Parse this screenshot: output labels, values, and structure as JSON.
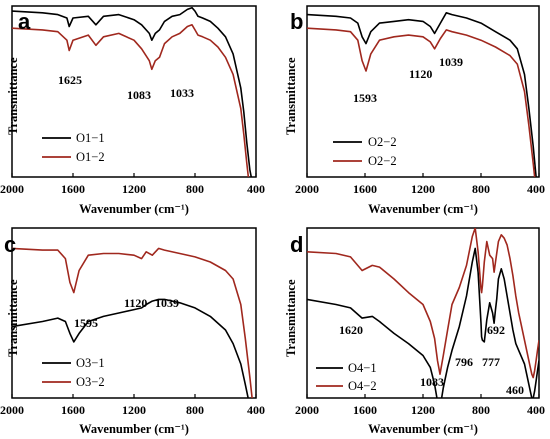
{
  "chart_data": [
    {
      "panel": "a",
      "type": "line",
      "xlabel": "Wavenumber (cm⁻¹)",
      "ylabel": "Transmittance",
      "xlim": [
        2000,
        400
      ],
      "xticks": [
        "2000",
        "1600",
        "1200",
        "800",
        "400"
      ],
      "legend_position": "bottom-left",
      "series": [
        {
          "name": "O1−1",
          "color": "#000000",
          "x": [
            2000,
            1800,
            1700,
            1640,
            1625,
            1600,
            1500,
            1450,
            1400,
            1300,
            1200,
            1150,
            1100,
            1083,
            1060,
            1033,
            1000,
            950,
            900,
            850,
            820,
            800,
            780,
            750,
            700,
            650,
            600,
            550,
            500,
            480,
            460,
            440,
            420,
            400
          ],
          "y": [
            97,
            96,
            95,
            93,
            88,
            93,
            94,
            89,
            94,
            95,
            92,
            89,
            84,
            80,
            84,
            86,
            91,
            94,
            95,
            98,
            99,
            97,
            94,
            93,
            91,
            87,
            82,
            72,
            52,
            38,
            20,
            4,
            -5,
            -10
          ]
        },
        {
          "name": "O1−2",
          "color": "#a0281e",
          "x": [
            2000,
            1800,
            1700,
            1640,
            1625,
            1600,
            1500,
            1450,
            1400,
            1300,
            1200,
            1150,
            1100,
            1083,
            1060,
            1033,
            1000,
            950,
            900,
            850,
            820,
            800,
            780,
            750,
            700,
            650,
            600,
            550,
            500,
            480,
            460,
            440,
            420,
            400
          ],
          "y": [
            87,
            86,
            85,
            80,
            74,
            80,
            83,
            77,
            82,
            84,
            80,
            75,
            68,
            63,
            68,
            70,
            78,
            82,
            84,
            88,
            89,
            86,
            83,
            82,
            80,
            76,
            70,
            60,
            40,
            25,
            8,
            -8,
            -20,
            -28
          ]
        }
      ],
      "annotations": [
        {
          "text": "1625"
        },
        {
          "text": "1083"
        },
        {
          "text": "1033"
        }
      ]
    },
    {
      "panel": "b",
      "type": "line",
      "xlabel": "Wavenumber (cm⁻¹)",
      "ylabel": "Transmittance",
      "xlim": [
        2000,
        400
      ],
      "xticks": [
        "2000",
        "1600",
        "1200",
        "800",
        "400"
      ],
      "legend_position": "bottom-left",
      "series": [
        {
          "name": "O2−2",
          "color": "#000000",
          "x": [
            2000,
            1800,
            1700,
            1650,
            1620,
            1593,
            1560,
            1500,
            1400,
            1300,
            1200,
            1150,
            1120,
            1080,
            1039,
            1000,
            900,
            800,
            700,
            600,
            550,
            500,
            470,
            440,
            420,
            400
          ],
          "y": [
            95,
            94,
            93,
            90,
            82,
            78,
            85,
            90,
            91,
            92,
            91,
            88,
            84,
            90,
            96,
            95,
            93,
            90,
            85,
            80,
            75,
            60,
            40,
            18,
            0,
            -15
          ]
        },
        {
          "name": "O2−2",
          "color": "#a0281e",
          "x": [
            2000,
            1800,
            1700,
            1650,
            1620,
            1593,
            1560,
            1500,
            1400,
            1300,
            1200,
            1150,
            1120,
            1080,
            1039,
            1000,
            900,
            800,
            700,
            600,
            550,
            500,
            470,
            440,
            420,
            400
          ],
          "y": [
            87,
            86,
            85,
            80,
            68,
            62,
            72,
            80,
            82,
            83,
            82,
            79,
            75,
            81,
            86,
            85,
            83,
            80,
            76,
            71,
            66,
            50,
            30,
            8,
            -8,
            -22
          ]
        }
      ],
      "annotations": [
        {
          "text": "1593"
        },
        {
          "text": "1120"
        },
        {
          "text": "1039"
        }
      ]
    },
    {
      "panel": "c",
      "type": "line",
      "xlabel": "Wavenumber (cm⁻¹)",
      "ylabel": "Transmittance",
      "xlim": [
        2000,
        400
      ],
      "xticks": [
        "2000",
        "1600",
        "1200",
        "800",
        "400"
      ],
      "legend_position": "bottom-left",
      "series": [
        {
          "name": "O3−1",
          "color": "#000000",
          "x": [
            2000,
            1800,
            1700,
            1650,
            1620,
            1595,
            1560,
            1500,
            1400,
            1300,
            1200,
            1150,
            1120,
            1080,
            1039,
            1000,
            900,
            800,
            700,
            600,
            550,
            500,
            470,
            440,
            420,
            400
          ],
          "y": [
            42,
            45,
            47,
            45,
            38,
            33,
            38,
            45,
            48,
            50,
            52,
            53,
            55,
            57,
            58,
            58,
            56,
            53,
            48,
            40,
            32,
            20,
            8,
            -5,
            -15,
            -20
          ]
        },
        {
          "name": "O3−2",
          "color": "#a0281e",
          "x": [
            2000,
            1800,
            1700,
            1650,
            1620,
            1595,
            1560,
            1500,
            1400,
            1300,
            1200,
            1150,
            1120,
            1080,
            1039,
            1000,
            900,
            800,
            700,
            600,
            550,
            500,
            470,
            440,
            420,
            400
          ],
          "y": [
            88,
            87,
            87,
            82,
            68,
            62,
            75,
            84,
            85,
            85,
            84,
            82,
            86,
            84,
            88,
            87,
            85,
            83,
            80,
            75,
            70,
            55,
            35,
            12,
            -5,
            -18
          ]
        }
      ],
      "annotations": [
        {
          "text": "1595"
        },
        {
          "text": "1120"
        },
        {
          "text": "1039"
        }
      ]
    },
    {
      "panel": "d",
      "type": "line",
      "xlabel": "Wavenumber (cm⁻¹)",
      "ylabel": "Transmittance",
      "xlim": [
        2000,
        400
      ],
      "xticks": [
        "2000",
        "1600",
        "1200",
        "800",
        "400"
      ],
      "legend_position": "bottom-left",
      "series": [
        {
          "name": "O4−1",
          "color": "#000000",
          "x": [
            2000,
            1800,
            1700,
            1620,
            1550,
            1500,
            1400,
            1300,
            1200,
            1150,
            1120,
            1100,
            1083,
            1060,
            1030,
            1000,
            950,
            900,
            860,
            840,
            820,
            800,
            796,
            790,
            777,
            760,
            740,
            720,
            710,
            700,
            692,
            680,
            660,
            640,
            620,
            600,
            580,
            560,
            540,
            520,
            500,
            480,
            460,
            450,
            440,
            430,
            420,
            410,
            400
          ],
          "y": [
            58,
            55,
            53,
            47,
            48,
            45,
            38,
            32,
            25,
            18,
            8,
            -2,
            -6,
            6,
            18,
            28,
            42,
            60,
            80,
            88,
            74,
            44,
            36,
            34,
            33,
            46,
            56,
            50,
            44,
            52,
            58,
            70,
            76,
            70,
            60,
            50,
            40,
            32,
            28,
            24,
            20,
            12,
            4,
            0,
            0,
            4,
            10,
            16,
            22
          ]
        },
        {
          "name": "O4−2",
          "color": "#a0281e",
          "x": [
            2000,
            1800,
            1700,
            1620,
            1550,
            1500,
            1400,
            1300,
            1200,
            1150,
            1120,
            1100,
            1083,
            1060,
            1030,
            1000,
            950,
            900,
            860,
            840,
            820,
            800,
            796,
            790,
            777,
            760,
            740,
            720,
            710,
            700,
            692,
            680,
            660,
            640,
            620,
            600,
            580,
            560,
            540,
            520,
            500,
            480,
            460,
            450,
            440,
            430,
            420,
            410,
            400
          ],
          "y": [
            86,
            85,
            83,
            75,
            78,
            77,
            70,
            62,
            55,
            45,
            35,
            22,
            14,
            25,
            40,
            55,
            65,
            78,
            95,
            100,
            86,
            64,
            62,
            66,
            80,
            92,
            84,
            82,
            74,
            80,
            85,
            92,
            96,
            94,
            90,
            82,
            72,
            60,
            50,
            42,
            34,
            26,
            18,
            14,
            12,
            16,
            22,
            28,
            34
          ]
        }
      ],
      "annotations": [
        {
          "text": "1620"
        },
        {
          "text": "1083"
        },
        {
          "text": "796"
        },
        {
          "text": "777"
        },
        {
          "text": "692"
        },
        {
          "text": "460"
        }
      ]
    }
  ]
}
